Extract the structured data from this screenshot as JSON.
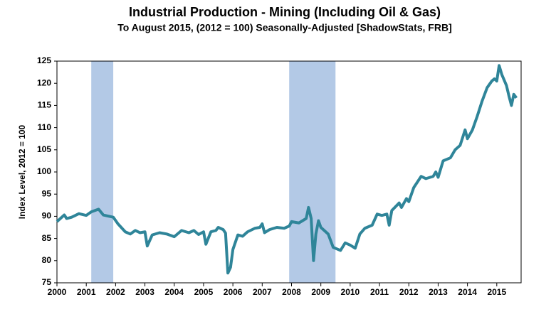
{
  "chart_data": {
    "type": "line",
    "title": "Industrial Production - Mining (Including Oil & Gas)",
    "subtitle": "To August 2015, (2012 = 100) Seasonally-Adjusted [ShadowStats, FRB]",
    "y_label": "Index Level, 2012 = 100",
    "xlim": [
      2000,
      2015.83
    ],
    "xticks": [
      2000,
      2001,
      2002,
      2003,
      2004,
      2005,
      2006,
      2007,
      2008,
      2009,
      2010,
      2011,
      2012,
      2013,
      2014,
      2015
    ],
    "ylim": [
      75,
      125
    ],
    "yticks": [
      75,
      80,
      85,
      90,
      95,
      100,
      105,
      110,
      115,
      120,
      125
    ],
    "grid": false,
    "recession_color": "#b3c9e6",
    "recessions": [
      [
        2001.17,
        2001.92
      ],
      [
        2007.92,
        2009.5
      ]
    ],
    "x": [
      2000.0,
      2000.25,
      2000.33,
      2000.5,
      2000.75,
      2001.0,
      2001.17,
      2001.42,
      2001.58,
      2001.92,
      2002.08,
      2002.33,
      2002.5,
      2002.67,
      2002.83,
      2003.0,
      2003.08,
      2003.25,
      2003.5,
      2003.75,
      2004.0,
      2004.25,
      2004.5,
      2004.67,
      2004.83,
      2005.0,
      2005.08,
      2005.25,
      2005.42,
      2005.5,
      2005.67,
      2005.75,
      2005.83,
      2005.92,
      2006.0,
      2006.17,
      2006.33,
      2006.5,
      2006.75,
      2006.92,
      2007.0,
      2007.08,
      2007.25,
      2007.5,
      2007.75,
      2007.92,
      2008.0,
      2008.25,
      2008.5,
      2008.58,
      2008.67,
      2008.75,
      2008.83,
      2008.92,
      2009.0,
      2009.25,
      2009.42,
      2009.67,
      2009.83,
      2010.0,
      2010.17,
      2010.33,
      2010.5,
      2010.75,
      2010.92,
      2011.08,
      2011.25,
      2011.33,
      2011.42,
      2011.67,
      2011.75,
      2011.92,
      2012.0,
      2012.17,
      2012.42,
      2012.58,
      2012.83,
      2012.92,
      2013.0,
      2013.17,
      2013.42,
      2013.58,
      2013.75,
      2013.92,
      2014.0,
      2014.17,
      2014.33,
      2014.5,
      2014.67,
      2014.83,
      2014.92,
      2015.0,
      2015.08,
      2015.17,
      2015.33,
      2015.42,
      2015.5,
      2015.58,
      2015.67
    ],
    "series": [
      {
        "name": "Mining",
        "color": "#2f8599",
        "values": [
          88.8,
          90.3,
          89.5,
          89.8,
          90.6,
          90.2,
          91.0,
          91.6,
          90.3,
          89.8,
          88.3,
          86.5,
          86.0,
          86.8,
          86.3,
          86.5,
          83.3,
          85.8,
          86.3,
          86.0,
          85.4,
          86.8,
          86.3,
          86.8,
          85.9,
          86.5,
          83.7,
          86.5,
          86.8,
          87.5,
          87.0,
          86.2,
          77.2,
          78.5,
          82.5,
          85.8,
          85.5,
          86.5,
          87.3,
          87.5,
          88.3,
          86.3,
          87.0,
          87.5,
          87.3,
          87.8,
          88.8,
          88.5,
          89.5,
          92.0,
          89.5,
          80.0,
          86.0,
          89.0,
          87.5,
          86.0,
          83.0,
          82.3,
          84.0,
          83.5,
          82.8,
          86.0,
          87.3,
          88.0,
          90.5,
          90.2,
          90.5,
          88.0,
          91.3,
          93.0,
          92.0,
          94.0,
          93.3,
          96.5,
          99.0,
          98.5,
          99.0,
          100.0,
          98.8,
          102.5,
          103.2,
          105.0,
          106.0,
          109.5,
          107.5,
          109.5,
          112.5,
          116.0,
          119.0,
          120.5,
          121.0,
          120.5,
          124.0,
          122.0,
          119.5,
          117.0,
          115.0,
          117.5,
          116.7
        ]
      }
    ]
  }
}
